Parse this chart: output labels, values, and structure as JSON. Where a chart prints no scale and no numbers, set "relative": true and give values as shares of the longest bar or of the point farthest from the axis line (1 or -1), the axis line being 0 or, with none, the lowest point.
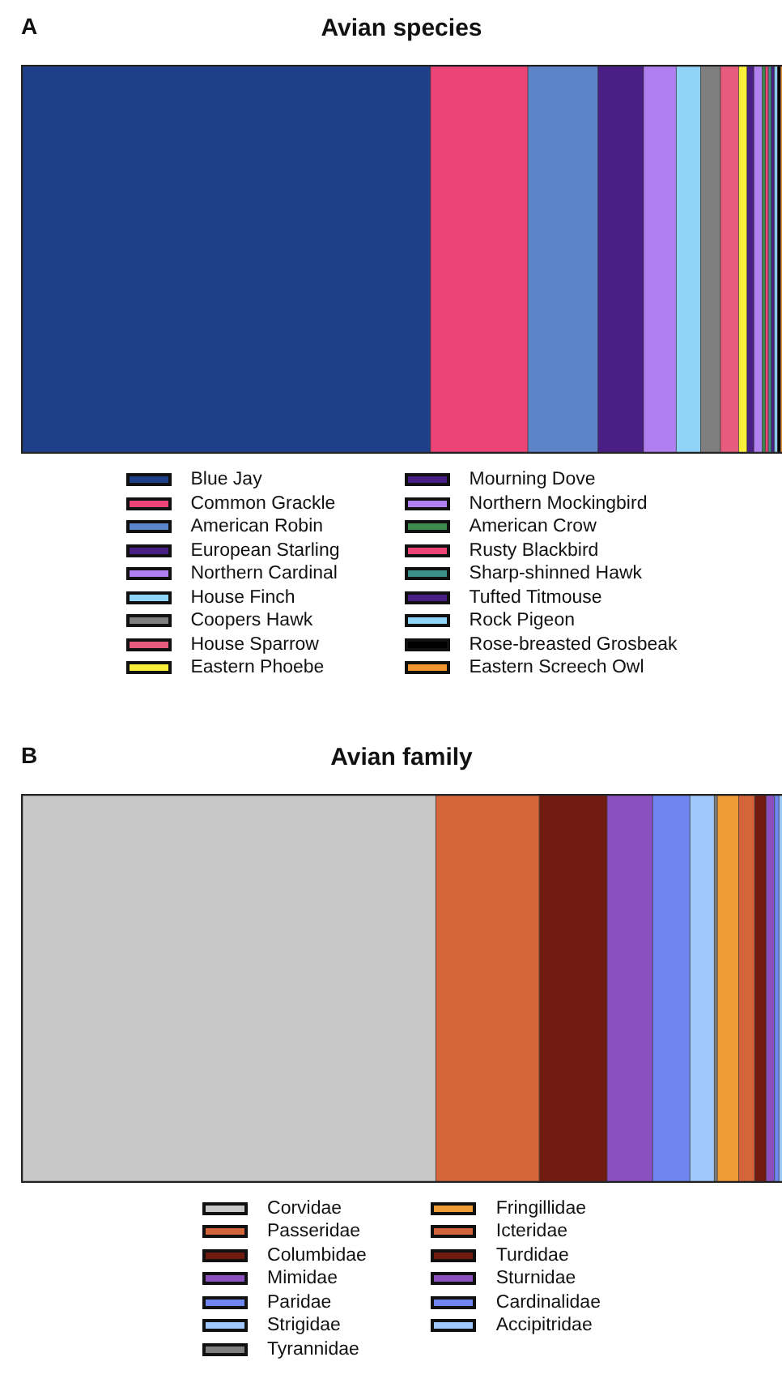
{
  "chart_data": [
    {
      "type": "bar",
      "title": "Avian species",
      "annotations": [
        "A"
      ],
      "categories": [
        null
      ],
      "orientation": "horizontal",
      "stacked": true,
      "relative": true,
      "legend": "bottom",
      "series": [
        {
          "name": "Blue Jay",
          "color": "#1f3f8a",
          "values": [
            0.536
          ]
        },
        {
          "name": "Common Grackle",
          "color": "#ec4476",
          "values": [
            0.128
          ]
        },
        {
          "name": "American Robin",
          "color": "#5b84c9",
          "values": [
            0.092
          ]
        },
        {
          "name": "European Starling",
          "color": "#4a1f85",
          "values": [
            0.06
          ]
        },
        {
          "name": "Northern Cardinal",
          "color": "#b07ff0",
          "values": [
            0.043
          ]
        },
        {
          "name": "House Finch",
          "color": "#8fd3f8",
          "values": [
            0.032
          ]
        },
        {
          "name": "Coopers Hawk",
          "color": "#7f7f7f",
          "values": [
            0.026
          ]
        },
        {
          "name": "House Sparrow",
          "color": "#e75c7e",
          "values": [
            0.024
          ]
        },
        {
          "name": "Eastern Phoebe",
          "color": "#f9ef3a",
          "values": [
            0.011
          ]
        },
        {
          "name": "Mourning Dove",
          "color": "#4a1f85",
          "values": [
            0.009
          ]
        },
        {
          "name": "Northern Mockingbird",
          "color": "#b07ff0",
          "values": [
            0.011
          ]
        },
        {
          "name": "American Crow",
          "color": "#3c8a4c",
          "values": [
            0.004
          ]
        },
        {
          "name": "Rusty Blackbird",
          "color": "#ec4476",
          "values": [
            0.004
          ]
        },
        {
          "name": "Sharp-shinned Hawk",
          "color": "#3b8f8a",
          "values": [
            0.004
          ]
        },
        {
          "name": "Tufted Titmouse",
          "color": "#4a1f85",
          "values": [
            0.004
          ]
        },
        {
          "name": "Rock Pigeon",
          "color": "#8fd3f8",
          "values": [
            0.004
          ]
        },
        {
          "name": "Rose-breasted Grosbeak",
          "color": "#000000",
          "values": [
            0.004
          ]
        },
        {
          "name": "Eastern Screech Owl",
          "color": "#f0962f",
          "values": [
            0.004
          ]
        }
      ]
    },
    {
      "type": "bar",
      "title": "Avian family",
      "annotations": [
        "B"
      ],
      "categories": [
        null
      ],
      "orientation": "horizontal",
      "stacked": true,
      "relative": true,
      "legend": "bottom",
      "series": [
        {
          "name": "Corvidae",
          "color": "#c8c8c8",
          "values": [
            0.543
          ]
        },
        {
          "name": "Passeridae",
          "color": "#d4643a",
          "values": [
            0.136
          ]
        },
        {
          "name": "Columbidae",
          "color": "#701a10",
          "values": [
            0.089
          ]
        },
        {
          "name": "Mimidae",
          "color": "#8a50c0",
          "values": [
            0.06
          ]
        },
        {
          "name": "Paridae",
          "color": "#6f86f0",
          "values": [
            0.049
          ]
        },
        {
          "name": "Strigidae",
          "color": "#a0c8fa",
          "values": [
            0.032
          ]
        },
        {
          "name": "Tyrannidae",
          "color": "#7f7f7f",
          "values": [
            0.004
          ]
        },
        {
          "name": "Fringillidae",
          "color": "#f09a36",
          "values": [
            0.028
          ]
        },
        {
          "name": "Icteridae",
          "color": "#d4643a",
          "values": [
            0.021
          ]
        },
        {
          "name": "Turdidae",
          "color": "#701a10",
          "values": [
            0.015
          ]
        },
        {
          "name": "Sturnidae",
          "color": "#8a50c0",
          "values": [
            0.011
          ]
        },
        {
          "name": "Cardinalidae",
          "color": "#6f86f0",
          "values": [
            0.006
          ]
        },
        {
          "name": "Accipitridae",
          "color": "#a0c8fa",
          "values": [
            0.006
          ]
        }
      ]
    }
  ]
}
